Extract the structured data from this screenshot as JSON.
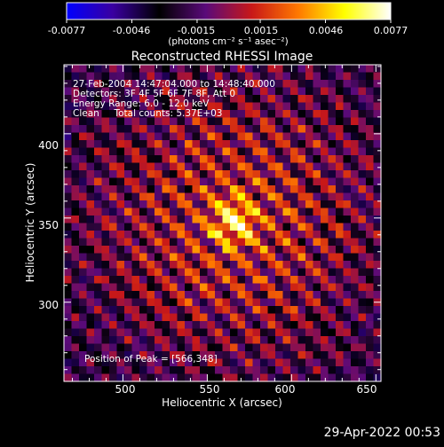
{
  "chart_data": {
    "type": "heatmap",
    "title": "Reconstructed RHESSI Image",
    "xlabel": "Heliocentric X (arcsec)",
    "ylabel": "Heliocentric Y (arcsec)",
    "xlim": [
      465,
      653
    ],
    "ylim": [
      253,
      441
    ],
    "xticks": [
      "500",
      "550",
      "600",
      "650"
    ],
    "xtick_values": [
      500,
      550,
      600,
      650
    ],
    "yticks": [
      "300",
      "350",
      "400"
    ],
    "ytick_values": [
      300,
      350,
      400
    ],
    "colorbar": {
      "min": -0.0077,
      "max": 0.0077,
      "tick_labels": [
        "-0.0077",
        "-0.0046",
        "-0.0015",
        "0.0015",
        "0.0046",
        "0.0077"
      ],
      "tick_values": [
        -0.0077,
        -0.0046,
        -0.0015,
        0.0015,
        0.0046,
        0.0077
      ],
      "units_label": "(photons cm⁻² s⁻¹ asec⁻²)",
      "colormap": [
        "#0000ff",
        "#3a00a0",
        "#000000",
        "#5a0a7a",
        "#c81818",
        "#ff7800",
        "#ffff00",
        "#ffffff"
      ]
    },
    "annotations": [
      "27-Feb-2004 14:47:04.000 to 14:48:40.000",
      "Detectors: 3F 4F 5F 6F 7F 8F, Att 0",
      "Energy Range: 6.0 - 12.0 keV",
      "Clean     Total counts: 5.37E+03"
    ],
    "peak_label": "Position of Peak = [566,348]",
    "peak_position": [
      566,
      348
    ],
    "peak_value": 0.0077,
    "grid": false
  },
  "footer": {
    "timestamp": "29-Apr-2022 00:53"
  }
}
